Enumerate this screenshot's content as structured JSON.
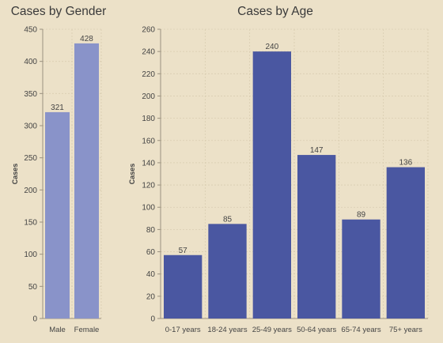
{
  "colors": {
    "background": "#ece1c8",
    "gender_bar": "#8993c9",
    "age_bar": "#4a57a1",
    "grid": "#d9cdb1",
    "axis": "#9a917f",
    "text": "#444444"
  },
  "chart_data": [
    {
      "type": "bar",
      "title": "Cases by Gender",
      "xlabel": "",
      "ylabel": "Cases",
      "categories": [
        "Male",
        "Female"
      ],
      "values": [
        321,
        428
      ],
      "data_labels": [
        "321",
        "428"
      ],
      "ylim": [
        0,
        450
      ],
      "yticks": [
        0,
        50,
        100,
        150,
        200,
        250,
        300,
        350,
        400,
        450
      ],
      "ytick_labels": [
        "0",
        "50",
        "100",
        "150",
        "200",
        "250",
        "300",
        "350",
        "400",
        "450"
      ],
      "grid": true,
      "legend": "none"
    },
    {
      "type": "bar",
      "title": "Cases by Age",
      "xlabel": "",
      "ylabel": "Cases",
      "categories": [
        "0-17 years",
        "18-24 years",
        "25-49 years",
        "50-64 years",
        "65-74 years",
        "75+ years"
      ],
      "values": [
        57,
        85,
        240,
        147,
        89,
        136
      ],
      "data_labels": [
        "57",
        "85",
        "240",
        "147",
        "89",
        "136"
      ],
      "ylim": [
        0,
        260
      ],
      "yticks": [
        0,
        20,
        40,
        60,
        80,
        100,
        120,
        140,
        160,
        180,
        200,
        220,
        240,
        260
      ],
      "ytick_labels": [
        "0",
        "20",
        "40",
        "60",
        "80",
        "100",
        "120",
        "140",
        "160",
        "180",
        "200",
        "220",
        "240",
        "260"
      ],
      "grid": true,
      "legend": "none"
    }
  ]
}
